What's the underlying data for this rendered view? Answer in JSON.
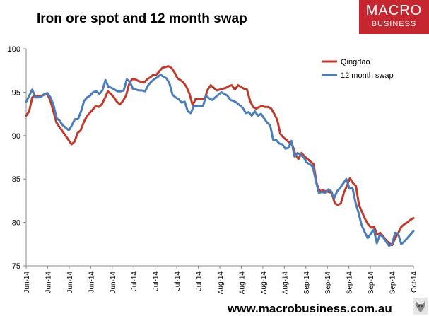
{
  "header": {
    "title": "Iron ore spot and 12 month swap"
  },
  "logo": {
    "line1": "MACRO",
    "line2": "BUSINESS"
  },
  "footer": {
    "url": "www.macrobusiness.com.au"
  },
  "colors": {
    "qingdao": "#c0392b",
    "swap": "#4a7ebb",
    "axis": "#888888"
  },
  "chart_data": {
    "type": "line",
    "title": "Iron ore spot and 12 month swap",
    "xlabel": "",
    "ylabel": "",
    "ylim": [
      75,
      100
    ],
    "yticks": [
      75,
      80,
      85,
      90,
      95,
      100
    ],
    "grid": false,
    "legend_position": "top-right",
    "x_tick_labels": [
      "Jun-14",
      "Jun-14",
      "Jun-14",
      "Jun-14",
      "Jun-14",
      "Jul-14",
      "Jul-14",
      "Jul-14",
      "Jul-14",
      "Aug-14",
      "Aug-14",
      "Aug-14",
      "Aug-14",
      "Sep-14",
      "Sep-14",
      "Sep-14",
      "Sep-14",
      "Sep-14",
      "Oct-14"
    ],
    "series": [
      {
        "name": "Qingdao",
        "values": [
          92.3,
          92.8,
          94.4,
          94.6,
          94.5,
          94.6,
          94.7,
          94.8,
          94.0,
          92.8,
          91.5,
          91.0,
          90.5,
          90.0,
          89.5,
          89.0,
          89.3,
          90.3,
          90.6,
          91.5,
          92.2,
          92.6,
          93.0,
          93.4,
          93.3,
          93.6,
          94.3,
          95.1,
          94.8,
          94.4,
          93.9,
          93.6,
          94.0,
          94.6,
          95.9,
          96.5,
          96.5,
          96.3,
          96.2,
          96.1,
          96.5,
          96.7,
          97.0,
          97.0,
          97.4,
          97.8,
          97.9,
          98.0,
          97.8,
          97.3,
          96.6,
          96.4,
          96.1,
          95.6,
          94.8,
          93.5,
          94.2,
          94.2,
          94.2,
          94.2,
          95.3,
          95.8,
          95.5,
          95.2,
          95.3,
          95.4,
          95.5,
          95.7,
          95.8,
          95.3,
          95.8,
          95.6,
          95.4,
          95.3,
          94.0,
          93.3,
          93.1,
          93.3,
          93.4,
          93.3,
          93.3,
          93.1,
          92.5,
          91.8,
          90.2,
          89.8,
          89.5,
          89.2,
          88.9,
          87.8,
          87.3,
          88.0,
          87.6,
          87.3,
          87.0,
          86.7,
          84.5,
          83.6,
          83.7,
          83.6,
          83.5,
          83.4,
          82.2,
          82.0,
          82.2,
          83.4,
          84.2,
          85.1,
          84.5,
          84.2,
          82.0,
          81.2,
          80.4,
          79.8,
          79.4,
          79.5,
          78.6,
          78.8,
          78.4,
          77.9,
          77.6,
          77.4,
          78.2,
          78.8,
          79.5,
          79.8,
          80.0,
          80.3,
          80.5
        ]
      },
      {
        "name": "12 month swap",
        "values": [
          93.9,
          94.6,
          95.3,
          94.4,
          94.4,
          94.5,
          94.8,
          94.9,
          94.4,
          93.5,
          92.0,
          91.7,
          91.2,
          90.9,
          90.6,
          91.2,
          91.9,
          91.9,
          92.8,
          94.0,
          94.4,
          94.6,
          95.0,
          95.1,
          94.8,
          95.2,
          96.4,
          95.6,
          95.5,
          95.3,
          95.1,
          95.1,
          95.2,
          96.5,
          96.2,
          95.4,
          95.3,
          95.2,
          95.2,
          95.1,
          95.8,
          96.2,
          96.5,
          96.7,
          97.0,
          96.8,
          96.6,
          96.0,
          94.7,
          94.4,
          94.2,
          93.8,
          93.9,
          92.8,
          92.6,
          93.4,
          93.4,
          93.4,
          93.4,
          94.6,
          94.3,
          94.1,
          94.4,
          94.7,
          95.0,
          94.8,
          94.6,
          94.1,
          94.0,
          93.8,
          93.5,
          93.2,
          92.6,
          92.7,
          92.3,
          92.8,
          92.3,
          92.5,
          92.0,
          91.5,
          91.2,
          89.5,
          89.5,
          89.1,
          89.0,
          88.5,
          88.6,
          89.4,
          87.6,
          88.0,
          87.8,
          87.5,
          86.9,
          86.7,
          86.4,
          84.8,
          83.4,
          83.5,
          83.4,
          83.8,
          83.6,
          82.8,
          83.6,
          84.0,
          84.5,
          85.0,
          83.9,
          84.0,
          82.3,
          81.1,
          79.7,
          78.9,
          78.2,
          78.7,
          79.2,
          77.6,
          78.6,
          78.3,
          77.8,
          77.3,
          77.5,
          78.8,
          78.7,
          77.5,
          77.8,
          78.2,
          78.6,
          79.0
        ]
      }
    ]
  }
}
